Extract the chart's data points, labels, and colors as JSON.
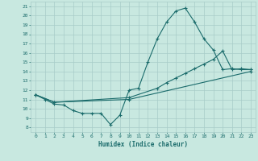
{
  "xlabel": "Humidex (Indice chaleur)",
  "xlim": [
    -0.5,
    23.5
  ],
  "ylim": [
    7.5,
    21.5
  ],
  "xticks": [
    0,
    1,
    2,
    3,
    4,
    5,
    6,
    7,
    8,
    9,
    10,
    11,
    12,
    13,
    14,
    15,
    16,
    17,
    18,
    19,
    20,
    21,
    22,
    23
  ],
  "yticks": [
    8,
    9,
    10,
    11,
    12,
    13,
    14,
    15,
    16,
    17,
    18,
    19,
    20,
    21
  ],
  "bg_color": "#c8e8e0",
  "line_color": "#1a6b6b",
  "grid_color": "#a8ccc8",
  "line1_x": [
    0,
    1,
    2,
    3,
    4,
    5,
    6,
    7,
    8,
    9,
    10,
    11,
    12,
    13,
    14,
    15,
    16,
    17,
    18,
    19,
    20,
    21,
    22,
    23
  ],
  "line1_y": [
    11.5,
    11.0,
    10.5,
    10.4,
    9.8,
    9.5,
    9.5,
    9.5,
    8.3,
    9.3,
    12.0,
    12.2,
    15.0,
    17.5,
    19.3,
    20.5,
    20.8,
    19.3,
    17.5,
    16.3,
    14.2,
    14.3,
    14.2,
    14.2
  ],
  "line2_x": [
    0,
    2,
    10,
    13,
    14,
    15,
    16,
    17,
    18,
    19,
    20,
    21,
    22,
    23
  ],
  "line2_y": [
    11.5,
    10.7,
    11.2,
    12.2,
    12.8,
    13.3,
    13.8,
    14.3,
    14.8,
    15.3,
    16.2,
    14.2,
    14.3,
    14.2
  ],
  "line3_x": [
    0,
    2,
    10,
    23
  ],
  "line3_y": [
    11.5,
    10.7,
    11.0,
    14.0
  ]
}
